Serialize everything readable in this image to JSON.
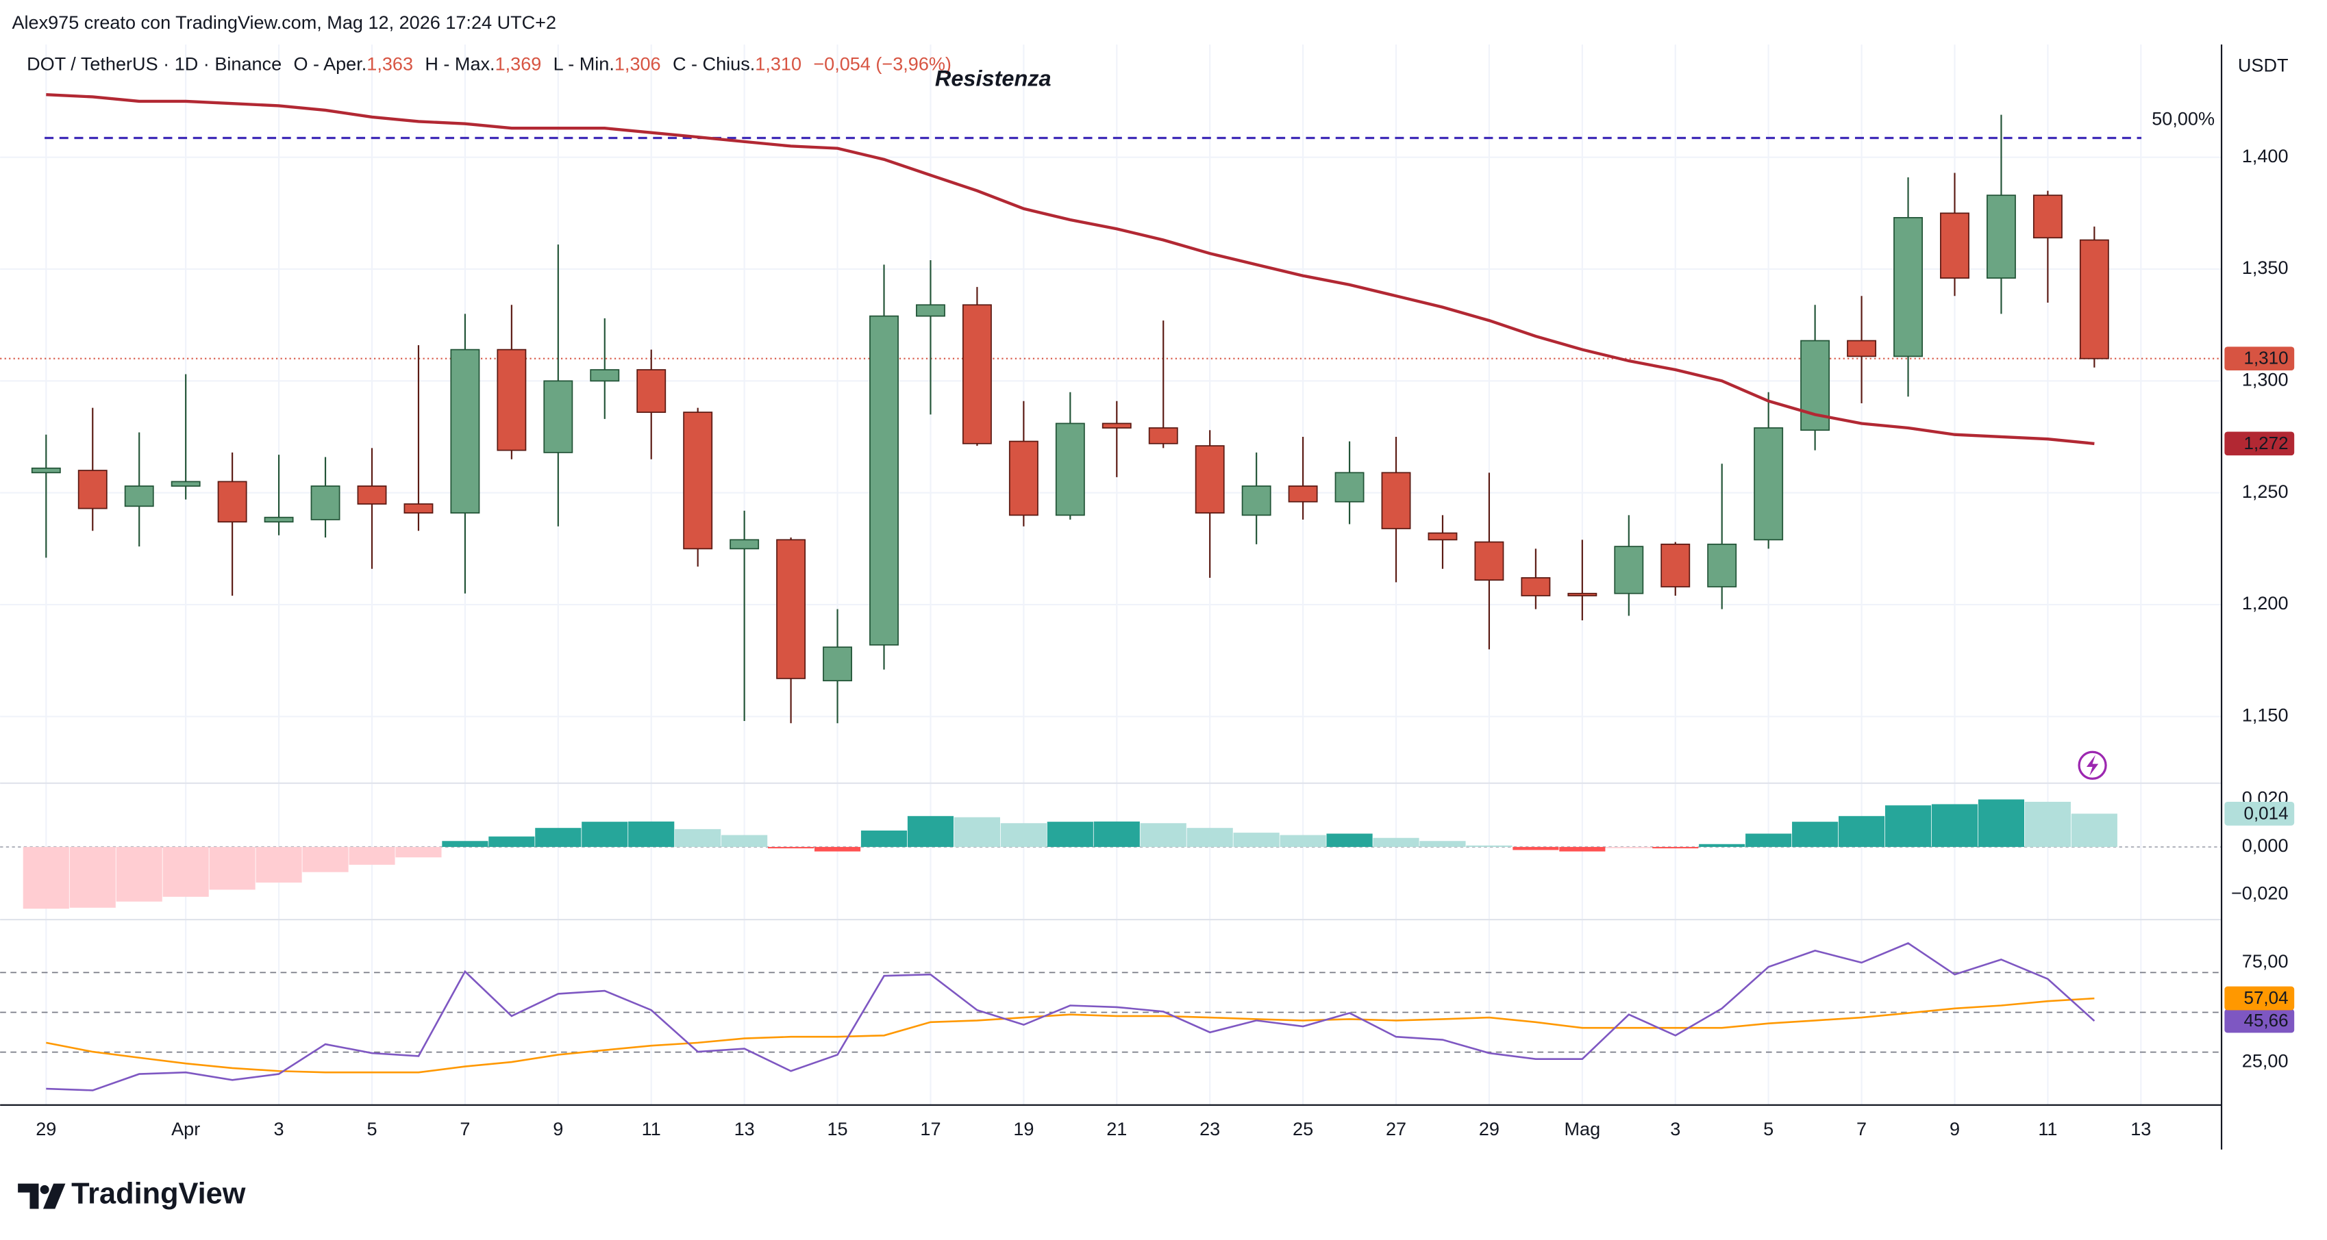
{
  "header": {
    "credit": "Alex975 creato con TradingView.com, Mag 12, 2026 17:24 UTC+2",
    "symbol": "DOT / TetherUS · 1D · Binance",
    "legend": [
      {
        "key": "O - Aper.",
        "value": "1,363"
      },
      {
        "key": "H - Max.",
        "value": "1,369"
      },
      {
        "key": "L - Min.",
        "value": "1,306"
      },
      {
        "key": "C - Chius.",
        "value": "1,310"
      }
    ],
    "change": "−0,054 (−3,96%)",
    "currency": "USDT"
  },
  "footer": {
    "brand": "TradingView"
  },
  "chart_data": [
    {
      "type": "candlestick",
      "categories": [
        "29",
        null,
        null,
        "Apr",
        null,
        "3",
        null,
        "5",
        null,
        "7",
        null,
        "9",
        null,
        "11",
        null,
        "13",
        null,
        "15",
        null,
        "17",
        null,
        "19",
        null,
        "21",
        null,
        "23",
        null,
        "25",
        null,
        "27",
        null,
        "29",
        null,
        "Mag",
        null,
        "3",
        null,
        "5",
        null,
        "7",
        null,
        "9",
        null,
        "11",
        null,
        "13"
      ],
      "open": [
        1.259,
        1.26,
        1.244,
        1.253,
        1.255,
        1.237,
        1.238,
        1.253,
        1.245,
        1.241,
        1.314,
        1.268,
        1.3,
        1.305,
        1.286,
        1.225,
        1.229,
        1.166,
        1.182,
        1.329,
        1.334,
        1.273,
        1.24,
        1.281,
        1.279,
        1.271,
        1.24,
        1.253,
        1.246,
        1.259,
        1.232,
        1.228,
        1.212,
        1.205,
        1.205,
        1.227,
        1.208,
        1.229,
        1.278,
        1.318,
        1.311,
        1.375,
        1.346,
        1.383,
        1.363,
        null
      ],
      "high": [
        1.276,
        1.288,
        1.277,
        1.303,
        1.268,
        1.267,
        1.266,
        1.27,
        1.316,
        1.33,
        1.334,
        1.361,
        1.328,
        1.314,
        1.288,
        1.242,
        1.23,
        1.198,
        1.352,
        1.354,
        1.342,
        1.291,
        1.295,
        1.291,
        1.327,
        1.278,
        1.268,
        1.275,
        1.273,
        1.275,
        1.24,
        1.259,
        1.225,
        1.229,
        1.24,
        1.228,
        1.263,
        1.295,
        1.334,
        1.338,
        1.391,
        1.393,
        1.419,
        1.385,
        1.369,
        null
      ],
      "low": [
        1.221,
        1.233,
        1.226,
        1.247,
        1.204,
        1.231,
        1.23,
        1.216,
        1.233,
        1.205,
        1.265,
        1.235,
        1.283,
        1.265,
        1.217,
        1.148,
        1.147,
        1.147,
        1.171,
        1.285,
        1.271,
        1.235,
        1.238,
        1.257,
        1.27,
        1.212,
        1.227,
        1.238,
        1.236,
        1.21,
        1.216,
        1.18,
        1.198,
        1.193,
        1.195,
        1.204,
        1.198,
        1.225,
        1.269,
        1.29,
        1.293,
        1.338,
        1.33,
        1.335,
        1.306,
        null
      ],
      "close": [
        1.261,
        1.243,
        1.253,
        1.255,
        1.237,
        1.239,
        1.253,
        1.245,
        1.241,
        1.314,
        1.269,
        1.3,
        1.305,
        1.286,
        1.225,
        1.229,
        1.167,
        1.181,
        1.329,
        1.334,
        1.272,
        1.24,
        1.281,
        1.279,
        1.272,
        1.241,
        1.253,
        1.246,
        1.259,
        1.234,
        1.229,
        1.211,
        1.204,
        1.204,
        1.226,
        1.208,
        1.227,
        1.279,
        1.318,
        1.311,
        1.373,
        1.346,
        1.383,
        1.364,
        1.31,
        null
      ],
      "up_color": "#6ba583",
      "down_color": "#d75442",
      "up_border": "#225437",
      "down_border": "#5b1a13",
      "series": [
        {
          "color": "#b22833",
          "values": [
            1.428,
            1.427,
            1.425,
            1.425,
            1.424,
            1.423,
            1.421,
            1.418,
            1.416,
            1.415,
            1.413,
            1.413,
            1.413,
            1.411,
            1.409,
            1.407,
            1.405,
            1.404,
            1.399,
            1.392,
            1.385,
            1.377,
            1.372,
            1.368,
            1.363,
            1.357,
            1.352,
            1.347,
            1.343,
            1.338,
            1.333,
            1.327,
            1.32,
            1.314,
            1.309,
            1.305,
            1.3,
            1.291,
            1.285,
            1.281,
            1.279,
            1.276,
            1.275,
            1.274,
            1.272,
            null
          ],
          "last_label": {
            "value": 1.272,
            "label": "1,272"
          }
        }
      ],
      "last_price": {
        "value": 1.31,
        "label": "1,310"
      },
      "resistance": {
        "price": 1.4086,
        "level_text": "50,00%",
        "text": "Resistenza",
        "color": "#3f2bb8",
        "text_color": "#9c27b0"
      },
      "ylim": [
        1.1202,
        1.4504
      ],
      "yticks": [
        {
          "value": 1.15,
          "label": "1,150"
        },
        {
          "value": 1.2,
          "label": "1,200"
        },
        {
          "value": 1.25,
          "label": "1,250"
        },
        {
          "value": 1.3,
          "label": "1,300"
        },
        {
          "value": 1.35,
          "label": "1,350"
        },
        {
          "value": 1.4,
          "label": "1,400"
        }
      ],
      "grid": true
    },
    {
      "type": "bar",
      "values": [
        -0.026,
        -0.0256,
        -0.023,
        -0.021,
        -0.018,
        -0.015,
        -0.0106,
        -0.0075,
        -0.0044,
        0.0025,
        0.0044,
        0.008,
        0.0106,
        0.0107,
        0.0075,
        0.005,
        -0.0006,
        -0.0019,
        0.0069,
        0.013,
        0.0125,
        0.01,
        0.0106,
        0.0107,
        0.01,
        0.008,
        0.006,
        0.005,
        0.0056,
        0.0038,
        0.0025,
        0.0006,
        -0.0013,
        -0.0019,
        -0.0002,
        -0.0006,
        0.0012,
        0.0056,
        0.0106,
        0.013,
        0.0175,
        0.018,
        0.02,
        0.019,
        0.014,
        null
      ],
      "colors": {
        "up_rising": "#26a69a",
        "up_falling": "#b2dfdb",
        "down_falling": "#ff5252",
        "down_rising": "#ffcdd2"
      },
      "last_label": {
        "value": 0.014,
        "label": "0,014"
      },
      "ylim": [
        -0.0306,
        0.0256
      ],
      "yticks": [
        {
          "value": 0.02,
          "label": "0,020"
        },
        {
          "value": 0,
          "label": "0,000"
        },
        {
          "value": -0.02,
          "label": "−0,020"
        }
      ]
    },
    {
      "type": "line",
      "series": [
        {
          "color": "#7e57c2",
          "values": [
            11.6,
            10.8,
            19.0,
            19.8,
            16.0,
            19.0,
            34.0,
            29.5,
            28.0,
            70.5,
            48.1,
            59.3,
            60.8,
            51.1,
            30.2,
            31.7,
            20.5,
            28.7,
            68.3,
            69.0,
            51.1,
            43.7,
            53.4,
            52.6,
            50.4,
            39.9,
            45.9,
            42.9,
            49.6,
            37.7,
            36.2,
            29.5,
            26.5,
            26.5,
            48.9,
            38.4,
            51.9,
            72.8,
            81.0,
            75.0,
            84.7,
            69.0,
            76.5,
            66.8,
            45.66,
            null
          ],
          "last_label": {
            "value": 45.66,
            "label": "45,66"
          },
          "label_text_color": "#ffffff"
        },
        {
          "color": "#ff9800",
          "values": [
            34.7,
            30.2,
            27.2,
            24.3,
            22.0,
            20.5,
            19.8,
            19.8,
            19.8,
            22.8,
            25.0,
            28.7,
            31.0,
            33.2,
            34.7,
            36.9,
            37.7,
            37.7,
            38.4,
            45.1,
            45.9,
            47.4,
            48.9,
            48.1,
            48.1,
            47.4,
            46.6,
            45.9,
            46.6,
            45.9,
            46.6,
            47.4,
            45.1,
            42.2,
            42.2,
            42.2,
            42.2,
            44.4,
            45.9,
            47.4,
            49.6,
            51.9,
            53.4,
            55.6,
            57.04,
            null
          ],
          "last_label": {
            "value": 57.04,
            "label": "57,04"
          },
          "label_text_color": "#131722"
        }
      ],
      "levels": [
        70,
        50,
        30
      ],
      "ylim": [
        3.4,
        95.1
      ],
      "yticks": [
        {
          "value": 75,
          "label": "75,00"
        },
        {
          "value": 25,
          "label": "25,00"
        }
      ]
    }
  ]
}
